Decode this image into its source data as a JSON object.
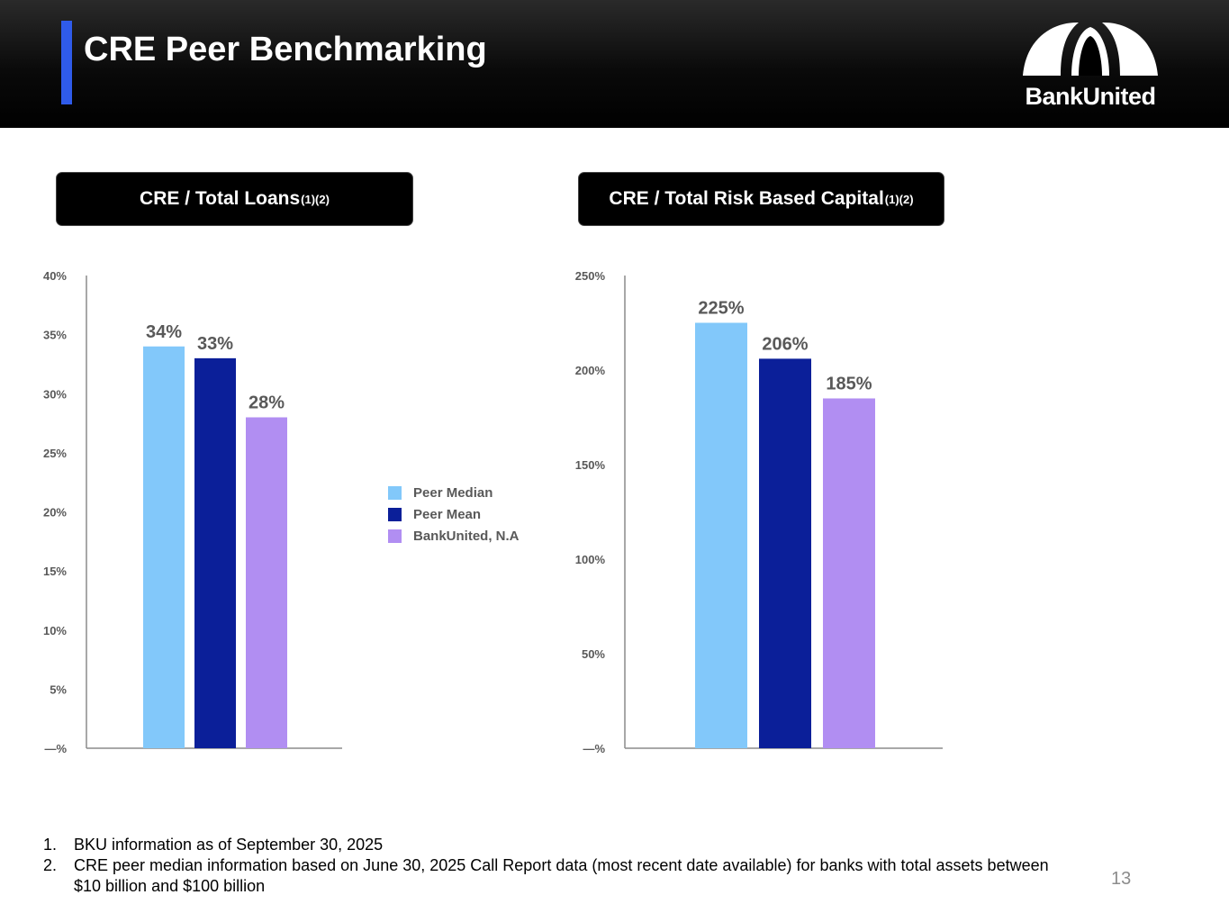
{
  "header": {
    "title": "CRE Peer Benchmarking",
    "logo_text": "BankUnited",
    "accent_color": "#2f5bea"
  },
  "panels": {
    "left_title": "CRE / Total Loans",
    "left_title_sup": "(1)(2)",
    "right_title": "CRE / Total Risk Based Capital",
    "right_title_sup": "(1)(2)"
  },
  "legend": [
    {
      "label": "Peer Median",
      "color": "#82c8fa"
    },
    {
      "label": "Peer Mean",
      "color": "#0b1f99"
    },
    {
      "label": "BankUnited, N.A",
      "color": "#b18ef2"
    }
  ],
  "chart_data": [
    {
      "type": "bar",
      "title": "CRE / Total Loans",
      "categories": [
        "Peer Median",
        "Peer Mean",
        "BankUnited, N.A"
      ],
      "values": [
        34,
        33,
        28
      ],
      "data_labels": [
        "34%",
        "33%",
        "28%"
      ],
      "colors": [
        "#82c8fa",
        "#0b1f99",
        "#b18ef2"
      ],
      "ylim": [
        0,
        40
      ],
      "yticks": [
        "—%",
        "5%",
        "10%",
        "15%",
        "20%",
        "25%",
        "30%",
        "35%",
        "40%"
      ],
      "grid": false,
      "legend": "right"
    },
    {
      "type": "bar",
      "title": "CRE / Total Risk Based Capital",
      "categories": [
        "Peer Median",
        "Peer Mean",
        "BankUnited, N.A"
      ],
      "values": [
        225,
        206,
        185
      ],
      "data_labels": [
        "225%",
        "206%",
        "185%"
      ],
      "colors": [
        "#82c8fa",
        "#0b1f99",
        "#b18ef2"
      ],
      "ylim": [
        0,
        250
      ],
      "yticks": [
        "—%",
        "50%",
        "100%",
        "150%",
        "200%",
        "250%"
      ],
      "grid": false
    }
  ],
  "footnotes": [
    {
      "num": "1.",
      "text": "BKU information as of September 30, 2025"
    },
    {
      "num": "2.",
      "text": "CRE peer median information based on June 30, 2025 Call Report data (most recent date available) for banks with total assets between $10 billion and $100 billion"
    }
  ],
  "page_number": "13"
}
